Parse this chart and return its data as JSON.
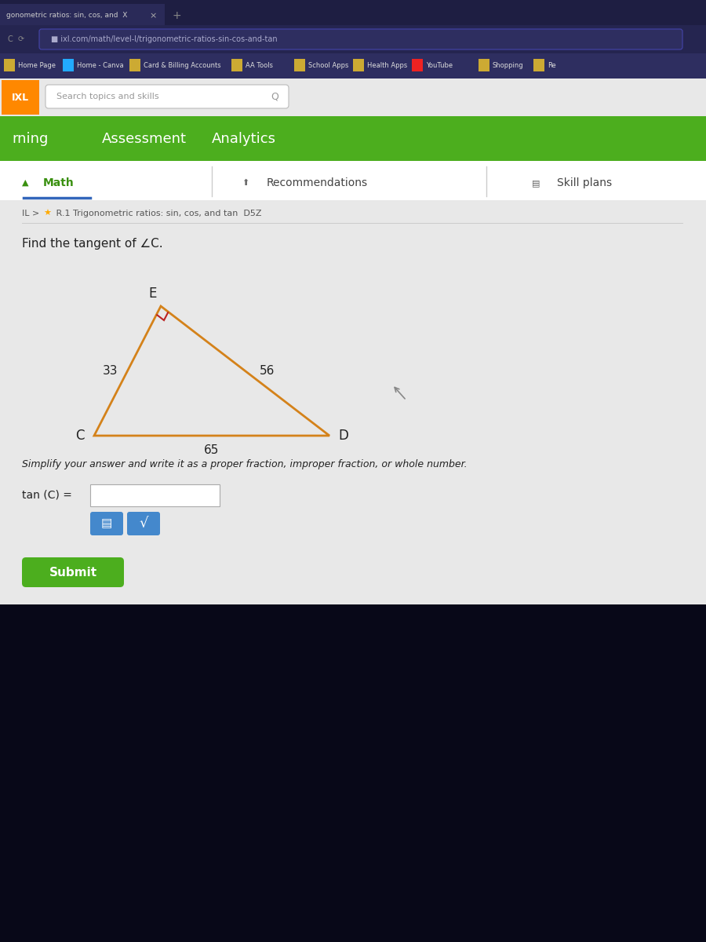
{
  "browser_tab_text": "gonometric ratios: sin, cos, and  X",
  "url_text": "ixl.com/math/level-l/trigonometric-ratios-sin-cos-and-tan",
  "bookmarks": [
    "Home Page",
    "Home - Canva",
    "Card & Billing Accounts",
    "AA Tools",
    "School Apps",
    "Health Apps",
    "YouTube",
    "Shopping",
    "Re"
  ],
  "search_placeholder": "Search topics and skills",
  "nav_items": [
    "rning",
    "Assessment",
    "Analytics"
  ],
  "tab_items": [
    "Math",
    "Recommendations",
    "Skill plans"
  ],
  "breadcrumb_left": "IL > ",
  "breadcrumb_right": " R.1 Trigonometric ratios: sin, cos, and tan  D5Z",
  "problem_text": "Find the tangent of ∠C.",
  "side_labels": {
    "CE": "33",
    "ED": "56",
    "CD": "65"
  },
  "answer_label": "tan (C) =",
  "simplify_text": "Simplify your answer and write it as a proper fraction, improper fraction, or whole number.",
  "submit_text": "Submit",
  "bg_dark": "#0e0e2a",
  "bg_browser_tab": "#1e1e42",
  "bg_active_tab": "#2a2a58",
  "bg_url_bar": "#2a2a55",
  "bg_bookmarks": "#2e2e60",
  "bg_light_gray": "#e8e8e8",
  "bg_white": "#ffffff",
  "bg_green": "#4cae1e",
  "bg_content": "#e8e8e8",
  "triangle_color": "#d4821a",
  "right_angle_color": "#bb2222",
  "text_light": "#cccccc",
  "text_dark": "#222222",
  "text_green": "#3a9010",
  "text_blue_underline": "#3366bb",
  "text_url": "#aaaacc",
  "submit_green": "#4cae1e",
  "btn_blue": "#4488cc",
  "bottom_dark": "#080818",
  "bm_colors": [
    "#ccaa33",
    "#22aaff",
    "#ccaa33",
    "#ccaa33",
    "#ccaa33",
    "#ccaa33",
    "#ee2222",
    "#ccaa33",
    "#ccaa33"
  ]
}
